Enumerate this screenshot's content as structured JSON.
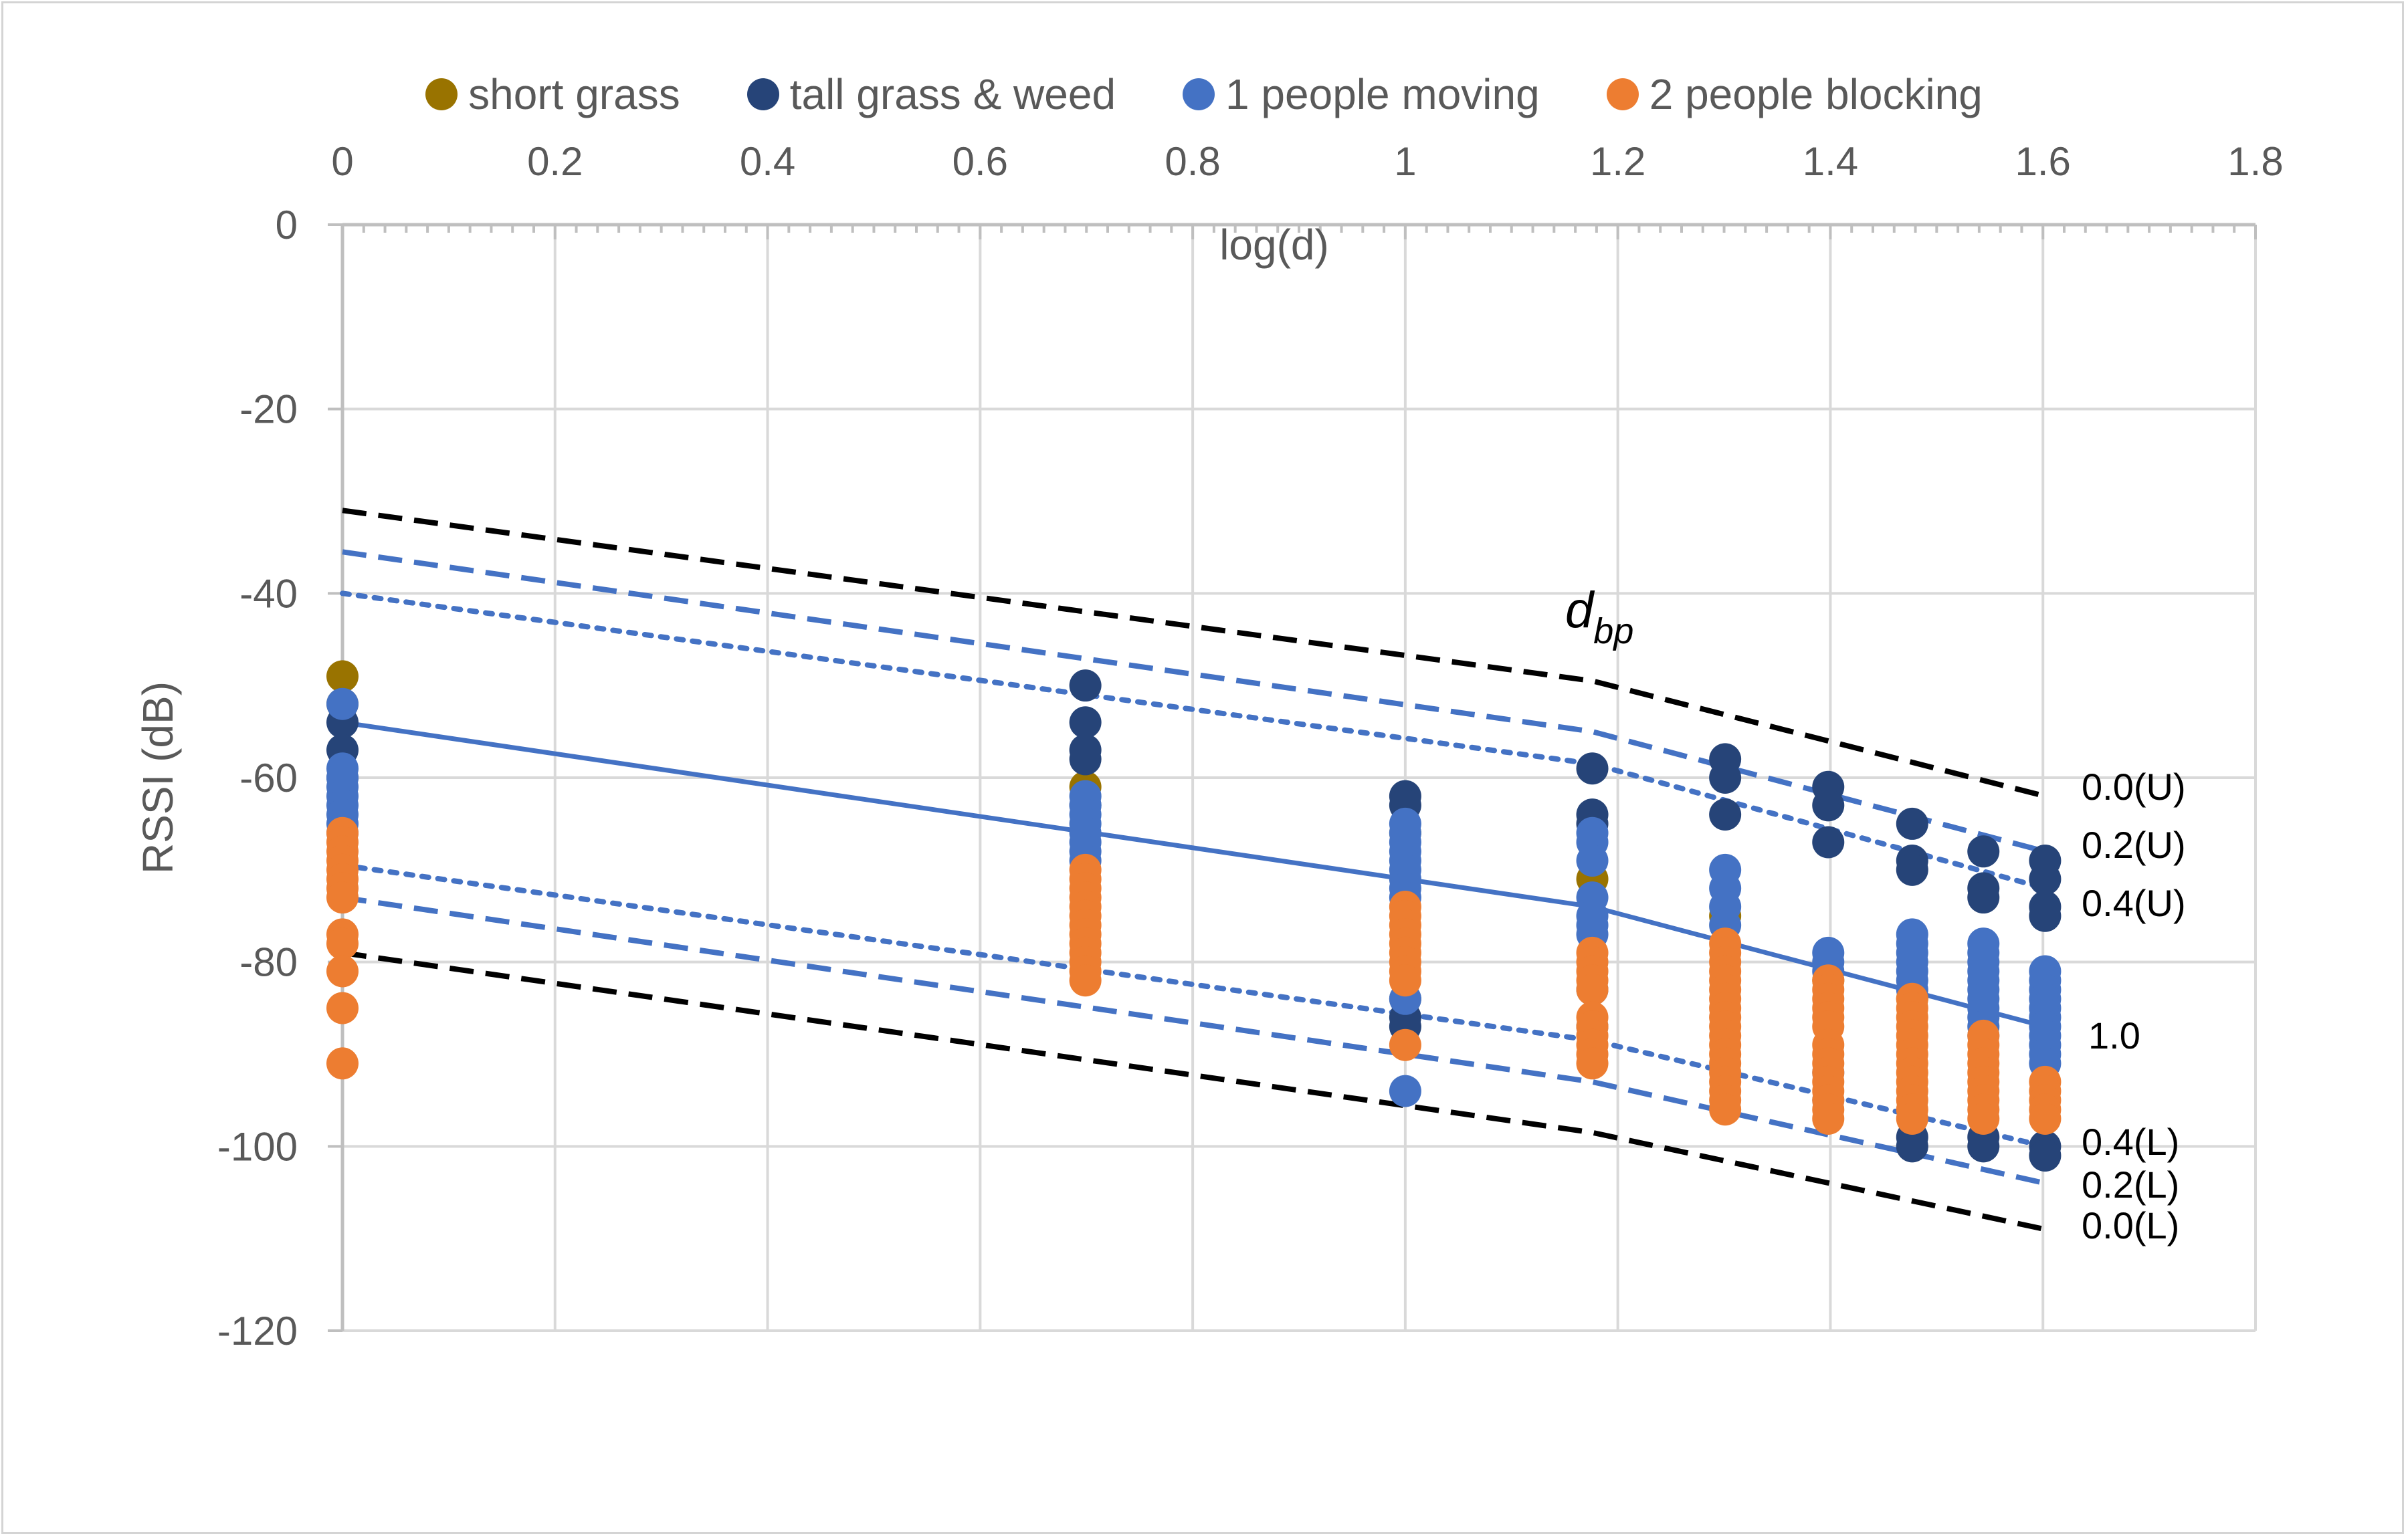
{
  "chart_data": {
    "type": "scatter",
    "title": "",
    "xlabel": "log(d)",
    "ylabel": "RSSI (dB)",
    "xlim": [
      0,
      1.8
    ],
    "ylim": [
      -120,
      0
    ],
    "x_ticks": [
      "0",
      "0.2",
      "0.4",
      "0.6",
      "0.8",
      "1",
      "1.2",
      "1.4",
      "1.6",
      "1.8"
    ],
    "y_ticks": [
      "0",
      "-20",
      "-40",
      "-60",
      "-80",
      "-100",
      "-120"
    ],
    "x_axis_position": "top",
    "grid": true,
    "legend_position": "top",
    "series": [
      {
        "name": "short grass",
        "color": "#997300",
        "points": [
          [
            0,
            -49
          ],
          [
            0,
            -52
          ],
          [
            0.699,
            -61
          ],
          [
            1,
            -66
          ],
          [
            1.176,
            -71
          ],
          [
            1.301,
            -75
          ],
          [
            1.398,
            -82
          ],
          [
            1.477,
            -84
          ]
        ]
      },
      {
        "name": "tall grass & weed",
        "color": "#264478",
        "points": [
          [
            0,
            -54
          ],
          [
            0,
            -57
          ],
          [
            0,
            -60
          ],
          [
            0.699,
            -50
          ],
          [
            0.699,
            -54
          ],
          [
            0.699,
            -57
          ],
          [
            0.699,
            -58
          ],
          [
            0.699,
            -63
          ],
          [
            1,
            -62
          ],
          [
            1,
            -63
          ],
          [
            1,
            -84
          ],
          [
            1,
            -86
          ],
          [
            1,
            -87
          ],
          [
            1.176,
            -59
          ],
          [
            1.176,
            -64
          ],
          [
            1.176,
            -65
          ],
          [
            1.176,
            -83
          ],
          [
            1.176,
            -87
          ],
          [
            1.301,
            -58
          ],
          [
            1.301,
            -60
          ],
          [
            1.301,
            -64
          ],
          [
            1.398,
            -61
          ],
          [
            1.398,
            -63
          ],
          [
            1.398,
            -67
          ],
          [
            1.477,
            -65
          ],
          [
            1.477,
            -69
          ],
          [
            1.477,
            -70
          ],
          [
            1.477,
            -99
          ],
          [
            1.477,
            -100
          ],
          [
            1.544,
            -68
          ],
          [
            1.544,
            -72
          ],
          [
            1.544,
            -73
          ],
          [
            1.544,
            -99
          ],
          [
            1.544,
            -100
          ],
          [
            1.602,
            -69
          ],
          [
            1.602,
            -71
          ],
          [
            1.602,
            -74
          ],
          [
            1.602,
            -75
          ],
          [
            1.602,
            -100
          ],
          [
            1.602,
            -101
          ]
        ]
      },
      {
        "name": "1 people moving",
        "color": "#4472c4",
        "points": [
          [
            0,
            -52
          ],
          [
            0,
            -59
          ],
          [
            0,
            -60
          ],
          [
            0,
            -61
          ],
          [
            0,
            -62
          ],
          [
            0,
            -63
          ],
          [
            0,
            -64
          ],
          [
            0,
            -65
          ],
          [
            0,
            -66
          ],
          [
            0.699,
            -62
          ],
          [
            0.699,
            -63
          ],
          [
            0.699,
            -64
          ],
          [
            0.699,
            -65
          ],
          [
            0.699,
            -66
          ],
          [
            0.699,
            -67
          ],
          [
            0.699,
            -68
          ],
          [
            0.699,
            -69
          ],
          [
            1,
            -65
          ],
          [
            1,
            -66
          ],
          [
            1,
            -67
          ],
          [
            1,
            -68
          ],
          [
            1,
            -69
          ],
          [
            1,
            -70
          ],
          [
            1,
            -71
          ],
          [
            1,
            -72
          ],
          [
            1,
            -73
          ],
          [
            1,
            -84
          ],
          [
            1,
            -94
          ],
          [
            1.176,
            -66
          ],
          [
            1.176,
            -67
          ],
          [
            1.176,
            -69
          ],
          [
            1.176,
            -73
          ],
          [
            1.176,
            -75
          ],
          [
            1.176,
            -76
          ],
          [
            1.176,
            -77
          ],
          [
            1.301,
            -70
          ],
          [
            1.301,
            -72
          ],
          [
            1.301,
            -74
          ],
          [
            1.301,
            -76
          ],
          [
            1.398,
            -79
          ],
          [
            1.398,
            -80
          ],
          [
            1.398,
            -81
          ],
          [
            1.398,
            -92
          ],
          [
            1.398,
            -95
          ],
          [
            1.477,
            -77
          ],
          [
            1.477,
            -78
          ],
          [
            1.477,
            -79
          ],
          [
            1.477,
            -80
          ],
          [
            1.477,
            -81
          ],
          [
            1.477,
            -82
          ],
          [
            1.477,
            -83
          ],
          [
            1.544,
            -78
          ],
          [
            1.544,
            -79
          ],
          [
            1.544,
            -80
          ],
          [
            1.544,
            -81
          ],
          [
            1.544,
            -82
          ],
          [
            1.544,
            -83
          ],
          [
            1.544,
            -84
          ],
          [
            1.544,
            -85
          ],
          [
            1.544,
            -86
          ],
          [
            1.544,
            -87
          ],
          [
            1.544,
            -88
          ],
          [
            1.602,
            -81
          ],
          [
            1.602,
            -82
          ],
          [
            1.602,
            -83
          ],
          [
            1.602,
            -84
          ],
          [
            1.602,
            -85
          ],
          [
            1.602,
            -86
          ],
          [
            1.602,
            -87
          ],
          [
            1.602,
            -88
          ],
          [
            1.602,
            -89
          ],
          [
            1.602,
            -90
          ],
          [
            1.602,
            -91
          ]
        ]
      },
      {
        "name": "2 people blocking",
        "color": "#ed7d31",
        "points": [
          [
            0,
            -66
          ],
          [
            0,
            -67
          ],
          [
            0,
            -68
          ],
          [
            0,
            -69
          ],
          [
            0,
            -70
          ],
          [
            0,
            -71
          ],
          [
            0,
            -72
          ],
          [
            0,
            -73
          ],
          [
            0,
            -77
          ],
          [
            0,
            -78
          ],
          [
            0,
            -81
          ],
          [
            0,
            -85
          ],
          [
            0,
            -91
          ],
          [
            0.699,
            -70
          ],
          [
            0.699,
            -71
          ],
          [
            0.699,
            -72
          ],
          [
            0.699,
            -73
          ],
          [
            0.699,
            -74
          ],
          [
            0.699,
            -75
          ],
          [
            0.699,
            -76
          ],
          [
            0.699,
            -77
          ],
          [
            0.699,
            -78
          ],
          [
            0.699,
            -79
          ],
          [
            0.699,
            -80
          ],
          [
            0.699,
            -81
          ],
          [
            0.699,
            -82
          ],
          [
            1,
            -74
          ],
          [
            1,
            -75
          ],
          [
            1,
            -76
          ],
          [
            1,
            -77
          ],
          [
            1,
            -78
          ],
          [
            1,
            -79
          ],
          [
            1,
            -80
          ],
          [
            1,
            -81
          ],
          [
            1,
            -82
          ],
          [
            1,
            -89
          ],
          [
            1.176,
            -79
          ],
          [
            1.176,
            -80
          ],
          [
            1.176,
            -81
          ],
          [
            1.176,
            -82
          ],
          [
            1.176,
            -83
          ],
          [
            1.176,
            -86
          ],
          [
            1.176,
            -87
          ],
          [
            1.176,
            -88
          ],
          [
            1.176,
            -89
          ],
          [
            1.176,
            -90
          ],
          [
            1.176,
            -91
          ],
          [
            1.301,
            -78
          ],
          [
            1.301,
            -79
          ],
          [
            1.301,
            -80
          ],
          [
            1.301,
            -81
          ],
          [
            1.301,
            -82
          ],
          [
            1.301,
            -83
          ],
          [
            1.301,
            -84
          ],
          [
            1.301,
            -85
          ],
          [
            1.301,
            -86
          ],
          [
            1.301,
            -87
          ],
          [
            1.301,
            -88
          ],
          [
            1.301,
            -89
          ],
          [
            1.301,
            -90
          ],
          [
            1.301,
            -91
          ],
          [
            1.301,
            -92
          ],
          [
            1.301,
            -93
          ],
          [
            1.301,
            -94
          ],
          [
            1.301,
            -95
          ],
          [
            1.301,
            -96
          ],
          [
            1.398,
            -82
          ],
          [
            1.398,
            -83
          ],
          [
            1.398,
            -84
          ],
          [
            1.398,
            -85
          ],
          [
            1.398,
            -86
          ],
          [
            1.398,
            -87
          ],
          [
            1.398,
            -89
          ],
          [
            1.398,
            -90
          ],
          [
            1.398,
            -91
          ],
          [
            1.398,
            -92
          ],
          [
            1.398,
            -93
          ],
          [
            1.398,
            -94
          ],
          [
            1.398,
            -95
          ],
          [
            1.398,
            -96
          ],
          [
            1.398,
            -97
          ],
          [
            1.477,
            -84
          ],
          [
            1.477,
            -85
          ],
          [
            1.477,
            -86
          ],
          [
            1.477,
            -87
          ],
          [
            1.477,
            -88
          ],
          [
            1.477,
            -89
          ],
          [
            1.477,
            -90
          ],
          [
            1.477,
            -91
          ],
          [
            1.477,
            -92
          ],
          [
            1.477,
            -93
          ],
          [
            1.477,
            -94
          ],
          [
            1.477,
            -95
          ],
          [
            1.477,
            -96
          ],
          [
            1.477,
            -97
          ],
          [
            1.544,
            -88
          ],
          [
            1.544,
            -89
          ],
          [
            1.544,
            -90
          ],
          [
            1.544,
            -91
          ],
          [
            1.544,
            -92
          ],
          [
            1.544,
            -93
          ],
          [
            1.544,
            -94
          ],
          [
            1.544,
            -95
          ],
          [
            1.544,
            -96
          ],
          [
            1.544,
            -97
          ],
          [
            1.602,
            -93
          ],
          [
            1.602,
            -94
          ],
          [
            1.602,
            -95
          ],
          [
            1.602,
            -96
          ],
          [
            1.602,
            -97
          ]
        ]
      }
    ],
    "lines": [
      {
        "label": "0.0(U)",
        "style": "dashed",
        "color": "#000000",
        "points": [
          [
            0,
            -31
          ],
          [
            1.176,
            -49.5
          ],
          [
            1.602,
            -62
          ]
        ]
      },
      {
        "label": "0.2(U)",
        "style": "dashed",
        "color": "#4472c4",
        "points": [
          [
            0,
            -35.5
          ],
          [
            1.176,
            -55
          ],
          [
            1.602,
            -68
          ]
        ]
      },
      {
        "label": "0.4(U)",
        "style": "dotted",
        "color": "#4472c4",
        "points": [
          [
            0,
            -40
          ],
          [
            1.176,
            -58.5
          ],
          [
            1.602,
            -72
          ]
        ]
      },
      {
        "label": "1.0",
        "style": "solid",
        "color": "#4472c4",
        "points": [
          [
            0,
            -54
          ],
          [
            1.176,
            -74
          ],
          [
            1.602,
            -87
          ]
        ]
      },
      {
        "label": "0.4(L)",
        "style": "dotted",
        "color": "#4472c4",
        "points": [
          [
            0,
            -69.5
          ],
          [
            1.176,
            -88.5
          ],
          [
            1.602,
            -100
          ]
        ]
      },
      {
        "label": "0.2(L)",
        "style": "dashed",
        "color": "#4472c4",
        "points": [
          [
            0,
            -73
          ],
          [
            1.176,
            -93
          ],
          [
            1.602,
            -104
          ]
        ]
      },
      {
        "label": "0.0(L)",
        "style": "dashed",
        "color": "#000000",
        "points": [
          [
            0,
            -79
          ],
          [
            1.176,
            -98.5
          ],
          [
            1.602,
            -109
          ]
        ]
      }
    ],
    "annotation": {
      "label": "d",
      "subscript": "bp",
      "x": 1.176,
      "y": -42
    }
  }
}
